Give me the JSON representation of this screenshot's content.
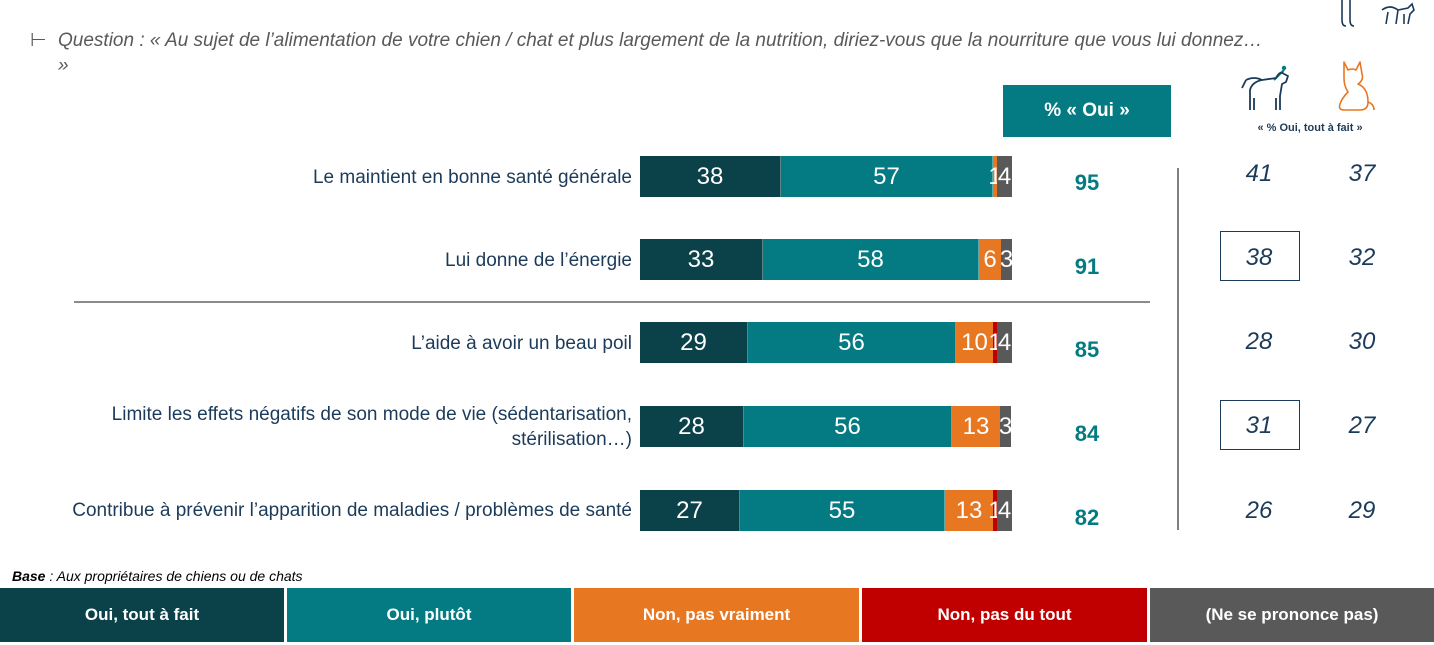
{
  "question": {
    "mark": "⊢",
    "text": "Question : « Au sujet de l’alimentation de votre chien / chat et plus largement de la nutrition, diriez-vous que la nourriture que vous lui donnez… »"
  },
  "header": {
    "oui_label": "% « Oui »",
    "tout_a_fait_label": "« % Oui, tout à fait »"
  },
  "icons": {
    "dog": "dog-icon",
    "cat": "cat-icon",
    "dog_color": "#1c3b5a",
    "cat_color": "#e87722"
  },
  "colors": {
    "oui_tout_a_fait": "#0b4148",
    "oui_plutot": "#047a82",
    "non_pas_vraiment": "#e87722",
    "non_pas_du_tout": "#c00000",
    "nsp": "#595959"
  },
  "chart_data": {
    "type": "bar",
    "orientation": "horizontal-stacked-100",
    "categories": [
      "Le maintient en bonne santé générale",
      "Lui donne de l’énergie",
      "L’aide à avoir un beau poil",
      "Limite les effets négatifs de son mode de vie (sédentarisation, stérilisation…)",
      "Contribue à prévenir l’apparition de maladies / problèmes de santé"
    ],
    "series": [
      {
        "name": "Oui, tout à fait",
        "values": [
          38,
          33,
          29,
          28,
          27
        ]
      },
      {
        "name": "Oui, plutôt",
        "values": [
          57,
          58,
          56,
          56,
          55
        ]
      },
      {
        "name": "Non, pas vraiment",
        "values": [
          1,
          6,
          10,
          13,
          13
        ]
      },
      {
        "name": "Non, pas du tout",
        "values": [
          0,
          0,
          1,
          0,
          1
        ]
      },
      {
        "name": "(Ne se prononce pas)",
        "values": [
          4,
          3,
          4,
          3,
          4
        ]
      }
    ],
    "totals_oui": [
      95,
      91,
      85,
      84,
      82
    ],
    "tout_a_fait_dog": [
      41,
      38,
      28,
      31,
      26
    ],
    "tout_a_fait_cat": [
      37,
      32,
      30,
      27,
      29
    ],
    "boxed_dog_rows": [
      1,
      3
    ],
    "xlim": [
      0,
      100
    ]
  },
  "base": {
    "label": "Base",
    "text": " : Aux propriétaires de chiens ou de chats"
  },
  "legend": [
    "Oui, tout à fait",
    "Oui, plutôt",
    "Non, pas vraiment",
    "Non, pas du tout",
    "(Ne se prononce pas)"
  ]
}
